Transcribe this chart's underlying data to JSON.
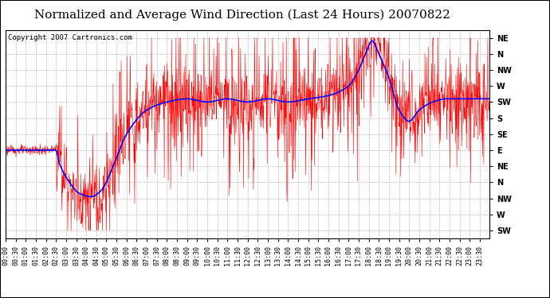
{
  "title": "Normalized and Average Wind Direction (Last 24 Hours) 20070822",
  "copyright": "Copyright 2007 Cartronics.com",
  "background_color": "#ffffff",
  "plot_bg_color": "#ffffff",
  "grid_color": "#bbbbbb",
  "red_line_color": "#ff0000",
  "blue_line_color": "#0000ff",
  "ytick_labels": [
    "NE",
    "N",
    "NW",
    "W",
    "SW",
    "S",
    "SE",
    "E",
    "NE",
    "N",
    "NW",
    "W",
    "SW"
  ],
  "ytick_values": [
    13,
    12,
    11,
    10,
    9,
    8,
    7,
    6,
    5,
    4,
    3,
    2,
    1
  ],
  "title_fontsize": 11,
  "tick_fontsize": 6,
  "copyright_fontsize": 6.5
}
